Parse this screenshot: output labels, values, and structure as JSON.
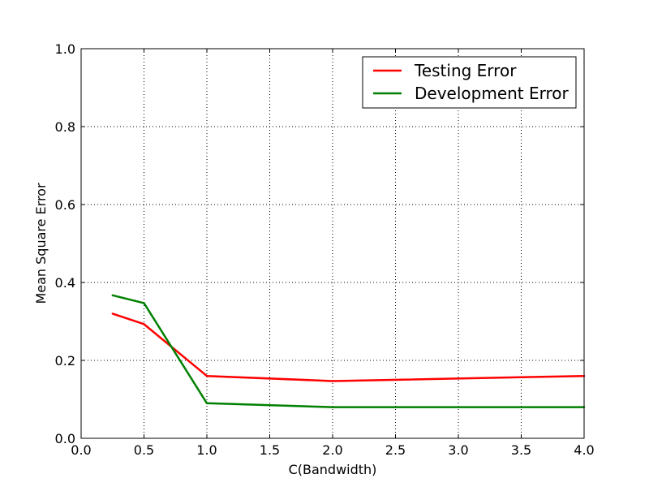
{
  "chart_data": {
    "type": "line",
    "title": "",
    "xlabel": "C(Bandwidth)",
    "ylabel": "Mean Square Error",
    "xlim": [
      0.0,
      4.0
    ],
    "ylim": [
      0.0,
      1.0
    ],
    "xticks": [
      "0.0",
      "0.5",
      "1.0",
      "1.5",
      "2.0",
      "2.5",
      "3.0",
      "3.5",
      "4.0"
    ],
    "yticks": [
      "0.0",
      "0.2",
      "0.4",
      "0.6",
      "0.8",
      "1.0"
    ],
    "grid": true,
    "legend_position": "top-right",
    "x": [
      0.25,
      0.5,
      1.0,
      2.0,
      4.0
    ],
    "series": [
      {
        "name": "Testing Error",
        "color": "#ff0000",
        "values": [
          0.32,
          0.293,
          0.16,
          0.147,
          0.16
        ]
      },
      {
        "name": "Development Error",
        "color": "#008000",
        "values": [
          0.367,
          0.347,
          0.09,
          0.08,
          0.08
        ]
      }
    ]
  }
}
